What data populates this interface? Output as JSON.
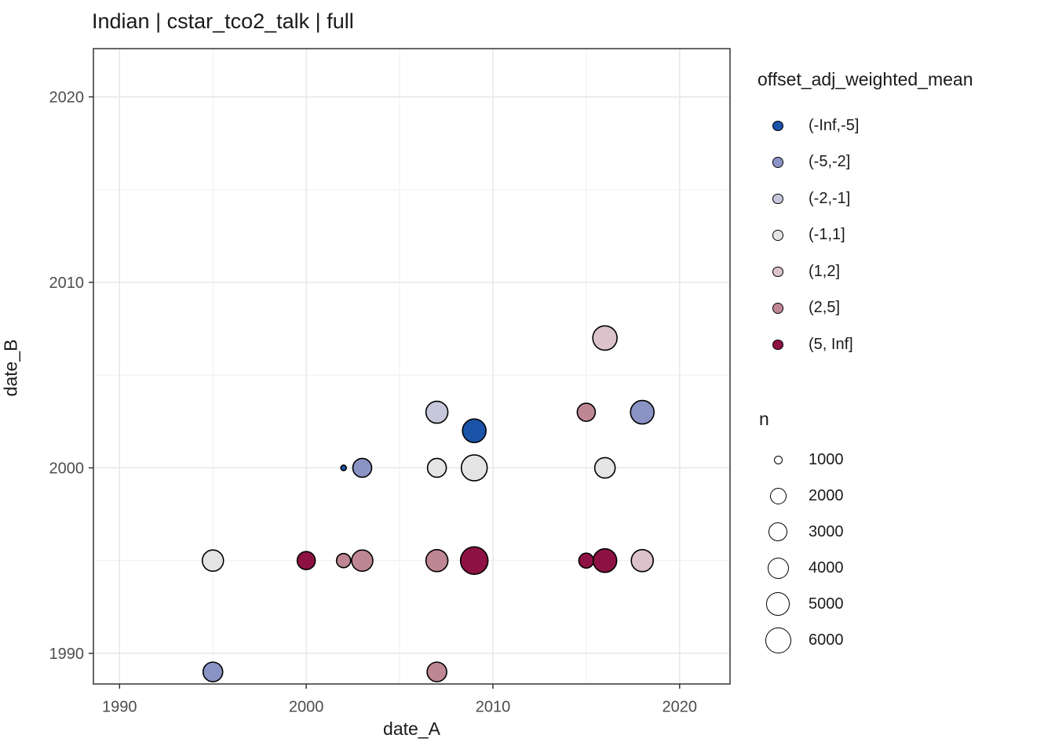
{
  "title": "Indian | cstar_tco2_talk | full",
  "chart_data": {
    "type": "scatter",
    "title": "Indian | cstar_tco2_talk | full",
    "xlabel": "date_A",
    "ylabel": "date_B",
    "xlim": [
      1988.6,
      2022.7
    ],
    "ylim": [
      1988.35,
      2022.6
    ],
    "x_ticks": [
      1990,
      2000,
      2010,
      2020
    ],
    "y_ticks": [
      1990,
      2000,
      2010,
      2020
    ],
    "x_minor_ticks": [
      1995,
      2005,
      2015
    ],
    "y_minor_ticks": [
      1995,
      2005,
      2015
    ],
    "grid": true,
    "panel": {
      "background": "#ffffff",
      "border_color": "#333333",
      "grid_major_color": "#e6e6e6",
      "grid_minor_color": "#f0f0f0",
      "tick_label_color": "#4d4d4d"
    },
    "color_legend": {
      "title": "offset_adj_weighted_mean",
      "entries": [
        {
          "label": "(-Inf,-5]",
          "color": "#1a53a8"
        },
        {
          "label": "(-5,-2]",
          "color": "#8b93c5"
        },
        {
          "label": "(-2,-1]",
          "color": "#c6c7da"
        },
        {
          "label": "(-1,1]",
          "color": "#e4e4e4"
        },
        {
          "label": "(1,2]",
          "color": "#dcc2ca"
        },
        {
          "label": "(2,5]",
          "color": "#bf8694"
        },
        {
          "label": "(5, Inf]",
          "color": "#8e1143"
        }
      ]
    },
    "size_legend": {
      "title": "n",
      "entries": [
        {
          "label": "1000",
          "d": 11
        },
        {
          "label": "2000",
          "d": 21
        },
        {
          "label": "3000",
          "d": 24
        },
        {
          "label": "4000",
          "d": 27
        },
        {
          "label": "5000",
          "d": 30
        },
        {
          "label": "6000",
          "d": 33
        }
      ]
    },
    "points": [
      {
        "x": 1995,
        "y": 1995,
        "bin": "(-1,1]",
        "n": 4000,
        "d": 27
      },
      {
        "x": 1995,
        "y": 1989,
        "bin": "(-5,-2]",
        "n": 3400,
        "d": 25
      },
      {
        "x": 2000,
        "y": 1995,
        "bin": "(5, Inf]",
        "n": 2800,
        "d": 23
      },
      {
        "x": 2002,
        "y": 1995,
        "bin": "(2,5]",
        "n": 1700,
        "d": 18
      },
      {
        "x": 2003,
        "y": 1995,
        "bin": "(2,5]",
        "n": 4000,
        "d": 27
      },
      {
        "x": 2002,
        "y": 2000,
        "bin": "(-Inf,-5]",
        "n": 300,
        "d": 7
      },
      {
        "x": 2003,
        "y": 2000,
        "bin": "(-5,-2]",
        "n": 3000,
        "d": 24
      },
      {
        "x": 2007,
        "y": 2003,
        "bin": "(-2,-1]",
        "n": 4300,
        "d": 28
      },
      {
        "x": 2009,
        "y": 2002,
        "bin": "(-Inf,-5]",
        "n": 5000,
        "d": 30
      },
      {
        "x": 2007,
        "y": 2000,
        "bin": "(-1,1]",
        "n": 3000,
        "d": 24
      },
      {
        "x": 2009,
        "y": 2000,
        "bin": "(-1,1]",
        "n": 6000,
        "d": 33
      },
      {
        "x": 2007,
        "y": 1995,
        "bin": "(2,5]",
        "n": 4300,
        "d": 28
      },
      {
        "x": 2009,
        "y": 1995,
        "bin": "(5, Inf]",
        "n": 6700,
        "d": 35
      },
      {
        "x": 2007,
        "y": 1989,
        "bin": "(2,5]",
        "n": 3400,
        "d": 25
      },
      {
        "x": 2015,
        "y": 2003,
        "bin": "(2,5]",
        "n": 2800,
        "d": 23
      },
      {
        "x": 2018,
        "y": 2003,
        "bin": "(-5,-2]",
        "n": 5000,
        "d": 30
      },
      {
        "x": 2016,
        "y": 2007,
        "bin": "(1,2]",
        "n": 5300,
        "d": 31
      },
      {
        "x": 2016,
        "y": 2000,
        "bin": "(-1,1]",
        "n": 3700,
        "d": 26
      },
      {
        "x": 2015,
        "y": 1995,
        "bin": "(5, Inf]",
        "n": 1900,
        "d": 19
      },
      {
        "x": 2016,
        "y": 1995,
        "bin": "(5, Inf]",
        "n": 5000,
        "d": 30
      },
      {
        "x": 2018,
        "y": 1995,
        "bin": "(1,2]",
        "n": 4300,
        "d": 28
      }
    ]
  }
}
